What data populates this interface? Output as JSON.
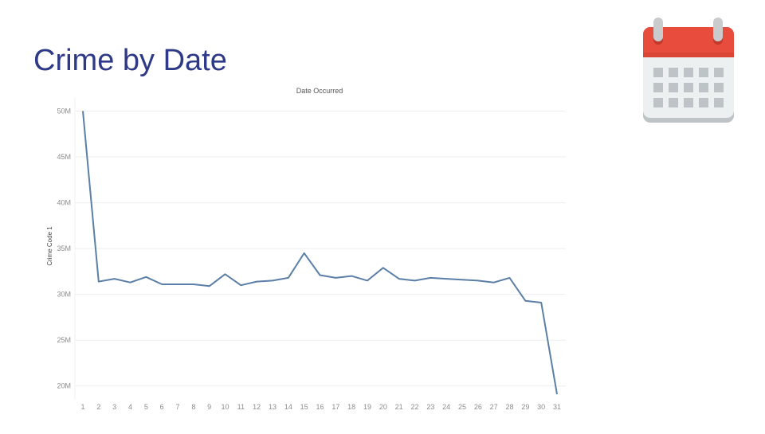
{
  "slide": {
    "title": "Crime by Date"
  },
  "icons": {
    "calendar": "calendar-icon"
  },
  "colors": {
    "title": "#2e3a87",
    "line": "#5b7fa6",
    "grid": "#eeeeee",
    "tick": "#8c8c8c",
    "calendar_header": "#e84c3d",
    "calendar_body": "#ecf0f1",
    "calendar_cells": "#bdc3c7",
    "calendar_rings": "#c9cbcd"
  },
  "chart_data": {
    "type": "line",
    "title": "Date Occurred",
    "xlabel": "",
    "ylabel": "Crime Code 1",
    "x": [
      1,
      2,
      3,
      4,
      5,
      6,
      7,
      8,
      9,
      10,
      11,
      12,
      13,
      14,
      15,
      16,
      17,
      18,
      19,
      20,
      21,
      22,
      23,
      24,
      25,
      26,
      27,
      28,
      29,
      30,
      31
    ],
    "values": [
      50.0,
      31.4,
      31.7,
      31.3,
      31.9,
      31.1,
      31.1,
      31.1,
      30.9,
      32.2,
      31.0,
      31.4,
      31.5,
      31.8,
      34.5,
      32.1,
      31.8,
      32.0,
      31.5,
      32.9,
      31.7,
      31.5,
      31.8,
      31.7,
      31.6,
      31.5,
      31.3,
      31.8,
      29.3,
      29.1,
      19.1
    ],
    "ylim": [
      18.5,
      51
    ],
    "yticks": [
      20,
      25,
      30,
      35,
      40,
      45,
      50
    ],
    "ytick_labels": [
      "20M",
      "25M",
      "30M",
      "35M",
      "40M",
      "45M",
      "50M"
    ],
    "xtick_labels": [
      "1",
      "2",
      "3",
      "4",
      "5",
      "6",
      "7",
      "8",
      "9",
      "10",
      "11",
      "12",
      "13",
      "14",
      "15",
      "16",
      "17",
      "18",
      "19",
      "20",
      "21",
      "22",
      "23",
      "24",
      "25",
      "26",
      "27",
      "28",
      "29",
      "30",
      "31"
    ],
    "grid": true,
    "legend": "none"
  }
}
